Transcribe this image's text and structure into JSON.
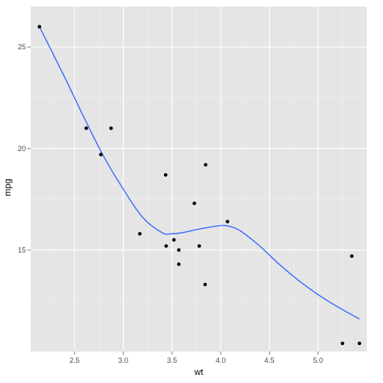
{
  "chart_data": {
    "type": "scatter",
    "xlabel": "wt",
    "ylabel": "mpg",
    "xlim": [
      2.05,
      5.5
    ],
    "ylim": [
      10.0,
      27.0
    ],
    "x_ticks": [
      2.5,
      3.0,
      3.5,
      4.0,
      4.5,
      5.0
    ],
    "x_tick_labels": [
      "2.5",
      "3.0",
      "3.5",
      "4.0",
      "4.5",
      "5.0"
    ],
    "y_ticks": [
      15,
      20,
      25
    ],
    "y_tick_labels": [
      "15",
      "20",
      "25"
    ],
    "grid": true,
    "points": [
      {
        "x": 2.14,
        "y": 26.0
      },
      {
        "x": 2.62,
        "y": 21.0
      },
      {
        "x": 2.875,
        "y": 21.0
      },
      {
        "x": 2.77,
        "y": 19.7
      },
      {
        "x": 3.17,
        "y": 15.8
      },
      {
        "x": 3.435,
        "y": 18.7
      },
      {
        "x": 3.44,
        "y": 15.2
      },
      {
        "x": 3.52,
        "y": 15.5
      },
      {
        "x": 3.57,
        "y": 15.0
      },
      {
        "x": 3.57,
        "y": 14.3
      },
      {
        "x": 3.73,
        "y": 17.3
      },
      {
        "x": 3.78,
        "y": 15.2
      },
      {
        "x": 3.84,
        "y": 13.3
      },
      {
        "x": 3.845,
        "y": 19.2
      },
      {
        "x": 4.07,
        "y": 16.4
      },
      {
        "x": 5.25,
        "y": 10.4
      },
      {
        "x": 5.345,
        "y": 14.7
      },
      {
        "x": 5.424,
        "y": 10.4
      }
    ],
    "smooth_line": {
      "x": [
        2.14,
        2.4,
        2.6,
        2.8,
        3.0,
        3.2,
        3.4,
        3.5,
        3.6,
        3.8,
        4.0,
        4.1,
        4.2,
        4.4,
        4.6,
        4.8,
        5.0,
        5.2,
        5.424
      ],
      "y": [
        26.0,
        23.5,
        21.5,
        19.6,
        18.0,
        16.6,
        15.85,
        15.8,
        15.85,
        16.05,
        16.2,
        16.15,
        15.95,
        15.2,
        14.3,
        13.5,
        12.8,
        12.2,
        11.6
      ],
      "color": "#3366ff"
    },
    "colors": {
      "panel_background": "#e5e5e5",
      "grid_major": "#ffffff",
      "grid_minor": "#f2f2f2",
      "point": "#000000"
    }
  }
}
